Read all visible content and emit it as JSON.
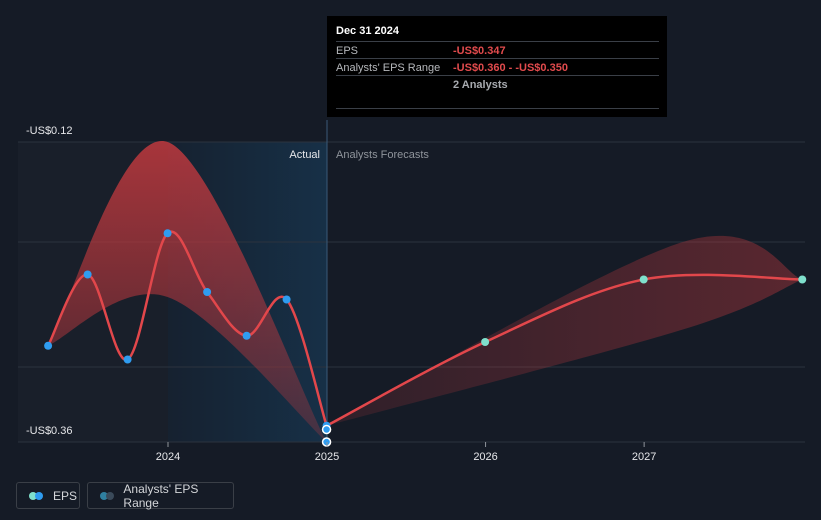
{
  "tooltip": {
    "date": "Dec 31 2024",
    "rows": [
      {
        "label": "EPS",
        "value": "-US$0.347"
      },
      {
        "label": "Analysts' EPS Range",
        "value": "-US$0.360 - -US$0.350"
      },
      {
        "label": "",
        "value": "2 Analysts"
      }
    ]
  },
  "legend": {
    "eps": "EPS",
    "range": "Analysts' EPS Range"
  },
  "colors": {
    "background": "#151b26",
    "eps_line": "#e2474b",
    "actual_dot": "#2f9cf0",
    "forecast_dot": "#7fe0cc",
    "range_fill": "#c1393e",
    "actual_highlight": "#173047",
    "grid": "#2c333e"
  },
  "chart_data": {
    "type": "line",
    "y_ticks": [
      "-US$0.12",
      "-US$0.36"
    ],
    "ylim": [
      -0.36,
      -0.12
    ],
    "x_ticks": [
      "2024",
      "2025",
      "2026",
      "2027"
    ],
    "regions": {
      "actual": "Actual",
      "forecast": "Analysts Forecasts"
    },
    "split_date": "2024-12-31",
    "eps_actual": [
      {
        "x": "2023-03-31",
        "y": -0.283
      },
      {
        "x": "2023-06-30",
        "y": -0.226
      },
      {
        "x": "2023-09-30",
        "y": -0.294
      },
      {
        "x": "2023-12-31",
        "y": -0.193
      },
      {
        "x": "2024-03-31",
        "y": -0.24
      },
      {
        "x": "2024-06-30",
        "y": -0.275
      },
      {
        "x": "2024-09-30",
        "y": -0.246
      },
      {
        "x": "2024-12-31",
        "y": -0.347
      }
    ],
    "eps_forecast": [
      {
        "x": "2024-12-31",
        "y": -0.347
      },
      {
        "x": "2025-12-31",
        "y": -0.28
      },
      {
        "x": "2026-12-31",
        "y": -0.23
      },
      {
        "x": "2027-12-31",
        "y": -0.23
      }
    ],
    "range_markers": [
      {
        "x": "2024-12-31",
        "y": -0.35
      },
      {
        "x": "2024-12-31",
        "y": -0.36
      }
    ],
    "historical_range": {
      "x": [
        "2023-03-31",
        "2023-12-31",
        "2024-12-31"
      ],
      "high": [
        -0.283,
        -0.12,
        -0.36
      ],
      "low": [
        -0.283,
        -0.244,
        -0.36
      ]
    },
    "forecast_range": {
      "x": [
        "2024-12-31",
        "2027-03-31",
        "2027-12-31"
      ],
      "high": [
        -0.347,
        -0.2,
        -0.23
      ],
      "low": [
        -0.347,
        -0.27,
        -0.23
      ]
    }
  }
}
